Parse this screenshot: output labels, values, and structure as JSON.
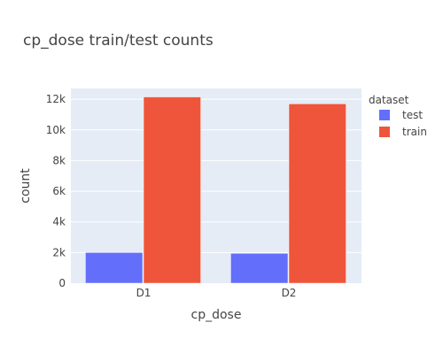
{
  "chart_data": {
    "type": "bar",
    "title": "cp_dose train/test counts",
    "xlabel": "cp_dose",
    "ylabel": "count",
    "categories": [
      "D1",
      "D2"
    ],
    "series": [
      {
        "name": "test",
        "values": [
          2000,
          1950
        ],
        "color": "#636efa"
      },
      {
        "name": "train",
        "values": [
          12150,
          11700
        ],
        "color": "#ef553b"
      }
    ],
    "ylim": [
      0,
      12700
    ],
    "yticks": [
      0,
      2000,
      4000,
      6000,
      8000,
      10000,
      12000
    ],
    "ytick_labels": [
      "0",
      "2k",
      "4k",
      "6k",
      "8k",
      "10k",
      "12k"
    ],
    "legend": {
      "title": "dataset",
      "position": "right"
    },
    "grid": true,
    "background": "#e5ecf6",
    "text_color": "#444444",
    "title_color": "#444444"
  }
}
